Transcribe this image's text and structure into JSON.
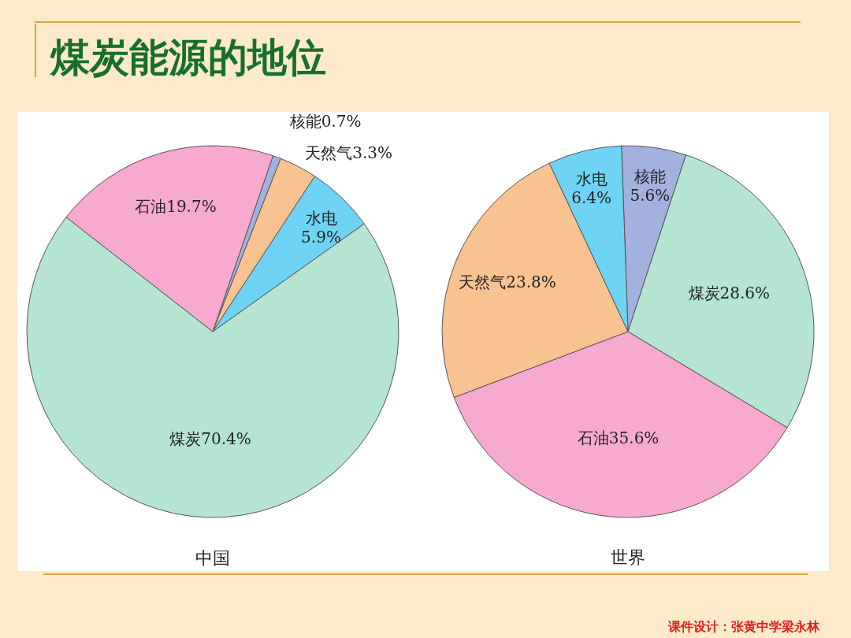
{
  "chart_data": [
    {
      "type": "pie",
      "title": "煤炭能源的地位",
      "xlabel": "中国",
      "categories": [
        "核能",
        "天然气",
        "水电",
        "煤炭",
        "石油"
      ],
      "values": [
        0.7,
        3.3,
        5.9,
        70.4,
        19.7
      ],
      "value_labels": [
        "0.7%",
        "3.3%",
        "5.9%",
        "70.4%",
        "19.7%"
      ],
      "colors": [
        "#a3b1de",
        "#f9c291",
        "#6fd3f5",
        "#b5e4d2",
        "#f8a9d0"
      ]
    },
    {
      "type": "pie",
      "xlabel": "世界",
      "categories": [
        "核能",
        "煤炭",
        "石油",
        "天然气",
        "水电"
      ],
      "values": [
        5.6,
        28.6,
        35.6,
        23.8,
        6.4
      ],
      "value_labels": [
        "5.6%",
        "28.6%",
        "35.6%",
        "23.8%",
        "6.4%"
      ],
      "colors": [
        "#a3b1de",
        "#b5e4d2",
        "#f8a9d0",
        "#f9c291",
        "#6fd3f5"
      ],
      "annotations": [
        "课件设计：张黄中学梁永林"
      ]
    }
  ]
}
